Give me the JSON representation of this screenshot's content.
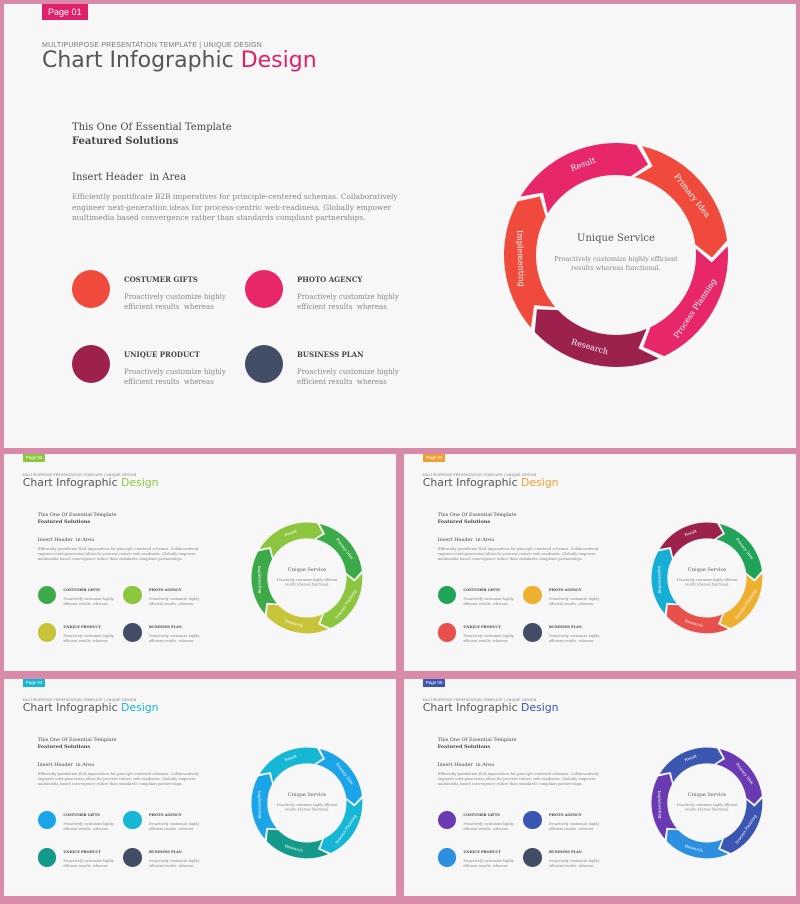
{
  "accent_colors": {
    "main": "#e0206a",
    "green": "#8cc63f",
    "orange": "#f0a030",
    "cyan": "#16b7d4",
    "indigo": "#3a56b0"
  },
  "slides": [
    {
      "tag": "Page 01",
      "eyebrow": "MULTIPURPOSE PRESENTATION TEMPLATE | UNIQUE DESIGN",
      "title_main": "Chart Infographic",
      "title_accent": "Design",
      "subtitle": "This One Of Essential Template",
      "subtitle_bold": "Featured Solutions",
      "header": "Insert Header  in Area",
      "paragraph": "Efficiently pontificate B2B imperatives for principle-centered schemas. Collaboratively engineer next-generation ideas for process-centric web-readiness. Globally empower multimedia based convergence rather than standards compliant partnerships.",
      "features": [
        {
          "title": "COSTUMER GIFTS",
          "desc": "Proactively customize highly efficient results  whereas",
          "color": "#f04a3c"
        },
        {
          "title": "PHOTO AGENCY",
          "desc": "Proactively customize highly efficient results  whereas",
          "color": "#e8266a"
        },
        {
          "title": "UNIQUE PRODUCT",
          "desc": "Proactively customize highly efficient results  whereas",
          "color": "#9c214c"
        },
        {
          "title": "BUSINESS PLAN",
          "desc": "Proactively customize highly efficient results  whereas",
          "color": "#424e66"
        }
      ],
      "cycle": {
        "center_title": "Unique Service",
        "center_desc": "Proactively customize highly efficient results whereas functional.",
        "segments": [
          {
            "label": "Primary Idea",
            "color": "#f04a3c"
          },
          {
            "label": "Process Planning",
            "color": "#e8266a"
          },
          {
            "label": "Research",
            "color": "#9c214c"
          },
          {
            "label": "Implementing",
            "color": "#f04a3c"
          },
          {
            "label": "Result",
            "color": "#e8266a"
          }
        ]
      }
    },
    {
      "tag": "Page 02",
      "eyebrow": "MULTIPURPOSE PRESENTATION TEMPLATE | UNIQUE DESIGN",
      "title_main": "Chart Infographic",
      "title_accent": "Design",
      "subtitle": "This One Of Essential Template",
      "subtitle_bold": "Featured Solutions",
      "header": "Insert Header  in Area",
      "paragraph": "Efficiently pontificate B2B imperatives for principle-centered schemas. Collaboratively engineer next-generation ideas for process-centric web-readiness. Globally empower multimedia based convergence rather than standards compliant partnerships.",
      "features": [
        {
          "title": "COSTUMER GIFTS",
          "desc": "Proactively customize highly efficient results  whereas",
          "color": "#3daa4a"
        },
        {
          "title": "PHOTO AGENCY",
          "desc": "Proactively customize highly efficient results  whereas",
          "color": "#8cc63f"
        },
        {
          "title": "UNIQUE PRODUCT",
          "desc": "Proactively customize highly efficient results  whereas",
          "color": "#c8c43a"
        },
        {
          "title": "BUSINESS PLAN",
          "desc": "Proactively customize highly efficient results  whereas",
          "color": "#424e66"
        }
      ],
      "cycle": {
        "center_title": "Unique Service",
        "center_desc": "Proactively customize highly efficient results whereas functional.",
        "segments": [
          {
            "label": "Primary Idea",
            "color": "#3daa4a"
          },
          {
            "label": "Process Planning",
            "color": "#8cc63f"
          },
          {
            "label": "Research",
            "color": "#c8c43a"
          },
          {
            "label": "Implementing",
            "color": "#3daa4a"
          },
          {
            "label": "Result",
            "color": "#8cc63f"
          }
        ]
      }
    },
    {
      "tag": "Page 03",
      "eyebrow": "MULTIPURPOSE PRESENTATION TEMPLATE | UNIQUE DESIGN",
      "title_main": "Chart Infographic",
      "title_accent": "Design",
      "subtitle": "This One Of Essential Template",
      "subtitle_bold": "Featured Solutions",
      "header": "Insert Header  in Area",
      "paragraph": "Efficiently pontificate B2B imperatives for principle-centered schemas. Collaboratively engineer next-generation ideas for process-centric web-readiness. Globally empower multimedia based convergence rather than standards compliant partnerships.",
      "features": [
        {
          "title": "COSTUMER GIFTS",
          "desc": "Proactively customize highly efficient results  whereas",
          "color": "#21a35a"
        },
        {
          "title": "PHOTO AGENCY",
          "desc": "Proactively customize highly efficient results  whereas",
          "color": "#eeb030"
        },
        {
          "title": "UNIQUE PRODUCT",
          "desc": "Proactively customize highly efficient results  whereas",
          "color": "#e8504c"
        },
        {
          "title": "BUSINESS PLAN",
          "desc": "Proactively customize highly efficient results  whereas",
          "color": "#424e66"
        }
      ],
      "cycle": {
        "center_title": "Unique Service",
        "center_desc": "Proactively customize highly efficient results whereas functional.",
        "segments": [
          {
            "label": "Primary Idea",
            "color": "#21a35a"
          },
          {
            "label": "Process Planning",
            "color": "#eeb030"
          },
          {
            "label": "Research",
            "color": "#e8504c"
          },
          {
            "label": "Implementing",
            "color": "#17aed6"
          },
          {
            "label": "Result",
            "color": "#9c214c"
          }
        ]
      }
    },
    {
      "tag": "Page 04",
      "eyebrow": "MULTIPURPOSE PRESENTATION TEMPLATE | UNIQUE DESIGN",
      "title_main": "Chart Infographic",
      "title_accent": "Design",
      "subtitle": "This One Of Essential Template",
      "subtitle_bold": "Featured Solutions",
      "header": "Insert Header  in Area",
      "paragraph": "Efficiently pontificate B2B imperatives for principle-centered schemas. Collaboratively engineer next-generation ideas for process-centric web-readiness. Globally empower multimedia based convergence rather than standards compliant partnerships.",
      "features": [
        {
          "title": "COSTUMER GIFTS",
          "desc": "Proactively customize highly efficient results  whereas",
          "color": "#1ba4e8"
        },
        {
          "title": "PHOTO AGENCY",
          "desc": "Proactively customize highly efficient results  whereas",
          "color": "#16b7d4"
        },
        {
          "title": "UNIQUE PRODUCT",
          "desc": "Proactively customize highly efficient results  whereas",
          "color": "#139a8a"
        },
        {
          "title": "BUSINESS PLAN",
          "desc": "Proactively customize highly efficient results  whereas",
          "color": "#424e66"
        }
      ],
      "cycle": {
        "center_title": "Unique Service",
        "center_desc": "Proactively customize highly efficient results whereas functional.",
        "segments": [
          {
            "label": "Primary Idea",
            "color": "#1ba4e8"
          },
          {
            "label": "Process Planning",
            "color": "#16b7d4"
          },
          {
            "label": "Research",
            "color": "#139a8a"
          },
          {
            "label": "Implementing",
            "color": "#1ba4e8"
          },
          {
            "label": "Result",
            "color": "#16b7d4"
          }
        ]
      }
    },
    {
      "tag": "Page 05",
      "eyebrow": "MULTIPURPOSE PRESENTATION TEMPLATE | UNIQUE DESIGN",
      "title_main": "Chart Infographic",
      "title_accent": "Design",
      "subtitle": "This One Of Essential Template",
      "subtitle_bold": "Featured Solutions",
      "header": "Insert Header  in Area",
      "paragraph": "Efficiently pontificate B2B imperatives for principle-centered schemas. Collaboratively engineer next-generation ideas for process-centric web-readiness. Globally empower multimedia based convergence rather than standards compliant partnerships.",
      "features": [
        {
          "title": "COSTUMER GIFTS",
          "desc": "Proactively customize highly efficient results  whereas",
          "color": "#6a3ab2"
        },
        {
          "title": "PHOTO AGENCY",
          "desc": "Proactively customize highly efficient results  whereas",
          "color": "#3a56b0"
        },
        {
          "title": "UNIQUE PRODUCT",
          "desc": "Proactively customize highly efficient results  whereas",
          "color": "#2c8fe0"
        },
        {
          "title": "BUSINESS PLAN",
          "desc": "Proactively customize highly efficient results  whereas",
          "color": "#424e66"
        }
      ],
      "cycle": {
        "center_title": "Unique Service",
        "center_desc": "Proactively customize highly efficient results whereas functional.",
        "segments": [
          {
            "label": "Primary Idea",
            "color": "#6a3ab2"
          },
          {
            "label": "Process Planning",
            "color": "#3a56b0"
          },
          {
            "label": "Research",
            "color": "#2c8fe0"
          },
          {
            "label": "Implementing",
            "color": "#6a3ab2"
          },
          {
            "label": "Result",
            "color": "#3a56b0"
          }
        ]
      }
    }
  ]
}
